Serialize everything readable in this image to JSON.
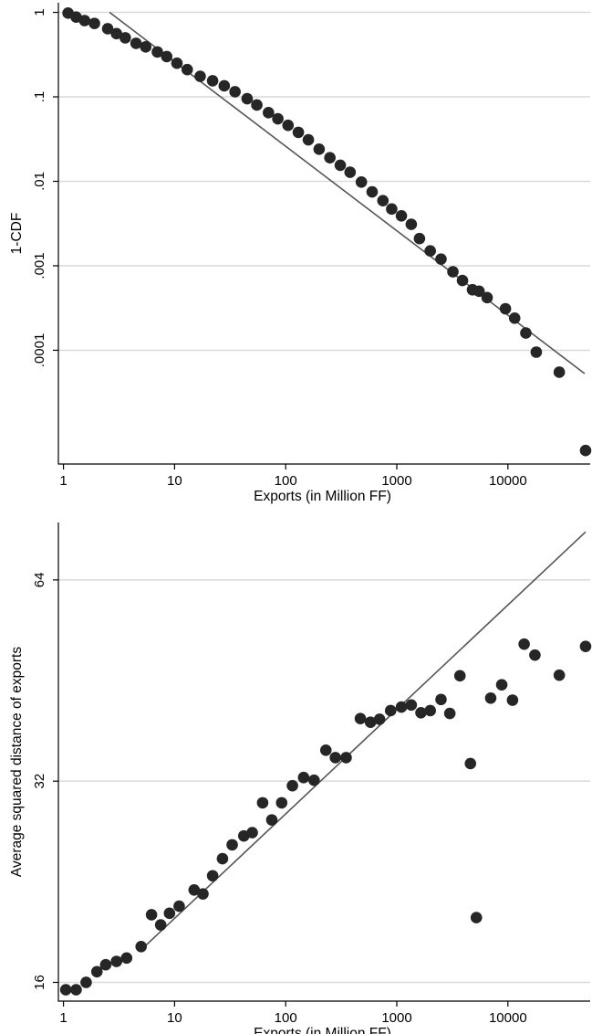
{
  "chart_data": [
    {
      "type": "scatter",
      "xlabel": "Exports (in Million FF)",
      "ylabel": "1-CDF",
      "xscale": "log",
      "yscale": "log",
      "xlim": [
        0.9,
        55000
      ],
      "ylim": [
        4.5e-06,
        1.3
      ],
      "x_ticks": [
        1,
        10,
        100,
        1000,
        10000
      ],
      "x_tick_labels": [
        "1",
        "10",
        "100",
        "1000",
        "10000"
      ],
      "y_ticks": [
        1,
        0.1,
        0.01,
        0.001,
        0.0001
      ],
      "y_tick_labels": [
        "1",
        ".1",
        ".01",
        ".001",
        ".0001"
      ],
      "grid": true,
      "points": [
        {
          "x": 1.1,
          "y": 0.98
        },
        {
          "x": 1.3,
          "y": 0.88
        },
        {
          "x": 1.55,
          "y": 0.8
        },
        {
          "x": 1.9,
          "y": 0.74
        },
        {
          "x": 2.5,
          "y": 0.64
        },
        {
          "x": 3.0,
          "y": 0.56
        },
        {
          "x": 3.6,
          "y": 0.5
        },
        {
          "x": 4.5,
          "y": 0.43
        },
        {
          "x": 5.5,
          "y": 0.39
        },
        {
          "x": 7.0,
          "y": 0.34
        },
        {
          "x": 8.5,
          "y": 0.3
        },
        {
          "x": 10.5,
          "y": 0.25
        },
        {
          "x": 13,
          "y": 0.21
        },
        {
          "x": 17,
          "y": 0.175
        },
        {
          "x": 22,
          "y": 0.155
        },
        {
          "x": 28,
          "y": 0.135
        },
        {
          "x": 35,
          "y": 0.115
        },
        {
          "x": 45,
          "y": 0.095
        },
        {
          "x": 55,
          "y": 0.08
        },
        {
          "x": 70,
          "y": 0.065
        },
        {
          "x": 85,
          "y": 0.055
        },
        {
          "x": 105,
          "y": 0.046
        },
        {
          "x": 130,
          "y": 0.038
        },
        {
          "x": 160,
          "y": 0.031
        },
        {
          "x": 200,
          "y": 0.024
        },
        {
          "x": 250,
          "y": 0.019
        },
        {
          "x": 310,
          "y": 0.0155
        },
        {
          "x": 380,
          "y": 0.0128
        },
        {
          "x": 480,
          "y": 0.0098
        },
        {
          "x": 600,
          "y": 0.0075
        },
        {
          "x": 750,
          "y": 0.0059
        },
        {
          "x": 900,
          "y": 0.0047
        },
        {
          "x": 1100,
          "y": 0.0039
        },
        {
          "x": 1350,
          "y": 0.0031
        },
        {
          "x": 1600,
          "y": 0.0021
        },
        {
          "x": 2000,
          "y": 0.0015
        },
        {
          "x": 2500,
          "y": 0.0012
        },
        {
          "x": 3200,
          "y": 0.00085
        },
        {
          "x": 3900,
          "y": 0.00067
        },
        {
          "x": 4800,
          "y": 0.00052
        },
        {
          "x": 5500,
          "y": 0.0005
        },
        {
          "x": 6500,
          "y": 0.00042
        },
        {
          "x": 9500,
          "y": 0.00031
        },
        {
          "x": 11500,
          "y": 0.00024
        },
        {
          "x": 14500,
          "y": 0.00016
        },
        {
          "x": 18000,
          "y": 9.5e-05
        },
        {
          "x": 29000,
          "y": 5.5e-05
        },
        {
          "x": 50000,
          "y": 6.5e-06
        }
      ],
      "fit_line": {
        "x": [
          2.6,
          49000
        ],
        "y": [
          1.0,
          5.3e-05
        ]
      }
    },
    {
      "type": "scatter",
      "xlabel": "Exports (in Million FF)",
      "ylabel": "Average squared distance of exports",
      "xscale": "log",
      "yscale": "log2",
      "xlim": [
        0.9,
        55000
      ],
      "ylim": [
        15,
        78
      ],
      "x_ticks": [
        1,
        10,
        100,
        1000,
        10000
      ],
      "x_tick_labels": [
        "1",
        "10",
        "100",
        "1000",
        "10000"
      ],
      "y_ticks": [
        16,
        32,
        64
      ],
      "y_tick_labels": [
        "16",
        "32",
        "64"
      ],
      "grid": true,
      "points": [
        {
          "x": 1.05,
          "y": 15.6
        },
        {
          "x": 1.3,
          "y": 15.6
        },
        {
          "x": 1.6,
          "y": 16.0
        },
        {
          "x": 2.0,
          "y": 16.6
        },
        {
          "x": 2.4,
          "y": 17.0
        },
        {
          "x": 3.0,
          "y": 17.2
        },
        {
          "x": 3.7,
          "y": 17.4
        },
        {
          "x": 5.0,
          "y": 18.1
        },
        {
          "x": 6.2,
          "y": 20.2
        },
        {
          "x": 7.5,
          "y": 19.5
        },
        {
          "x": 9.0,
          "y": 20.3
        },
        {
          "x": 11,
          "y": 20.8
        },
        {
          "x": 15,
          "y": 22.0
        },
        {
          "x": 18,
          "y": 21.7
        },
        {
          "x": 22,
          "y": 23.1
        },
        {
          "x": 27,
          "y": 24.5
        },
        {
          "x": 33,
          "y": 25.7
        },
        {
          "x": 42,
          "y": 26.5
        },
        {
          "x": 50,
          "y": 26.8
        },
        {
          "x": 62,
          "y": 29.7
        },
        {
          "x": 75,
          "y": 28.0
        },
        {
          "x": 92,
          "y": 29.7
        },
        {
          "x": 115,
          "y": 31.5
        },
        {
          "x": 145,
          "y": 32.4
        },
        {
          "x": 180,
          "y": 32.1
        },
        {
          "x": 230,
          "y": 35.6
        },
        {
          "x": 280,
          "y": 34.7
        },
        {
          "x": 350,
          "y": 34.7
        },
        {
          "x": 470,
          "y": 39.7
        },
        {
          "x": 580,
          "y": 39.2
        },
        {
          "x": 700,
          "y": 39.6
        },
        {
          "x": 880,
          "y": 40.8
        },
        {
          "x": 1100,
          "y": 41.3
        },
        {
          "x": 1350,
          "y": 41.6
        },
        {
          "x": 1650,
          "y": 40.5
        },
        {
          "x": 2000,
          "y": 40.8
        },
        {
          "x": 2500,
          "y": 42.4
        },
        {
          "x": 3000,
          "y": 40.4
        },
        {
          "x": 3700,
          "y": 46.0
        },
        {
          "x": 4600,
          "y": 34.0
        },
        {
          "x": 5200,
          "y": 20.0
        },
        {
          "x": 7000,
          "y": 42.6
        },
        {
          "x": 8800,
          "y": 44.6
        },
        {
          "x": 11000,
          "y": 42.3
        },
        {
          "x": 14000,
          "y": 51.3
        },
        {
          "x": 17500,
          "y": 49.4
        },
        {
          "x": 29000,
          "y": 46.1
        },
        {
          "x": 50000,
          "y": 50.9
        }
      ],
      "fit_line": {
        "x": [
          5.0,
          50000
        ],
        "y": [
          17.9,
          75.5
        ]
      }
    }
  ]
}
